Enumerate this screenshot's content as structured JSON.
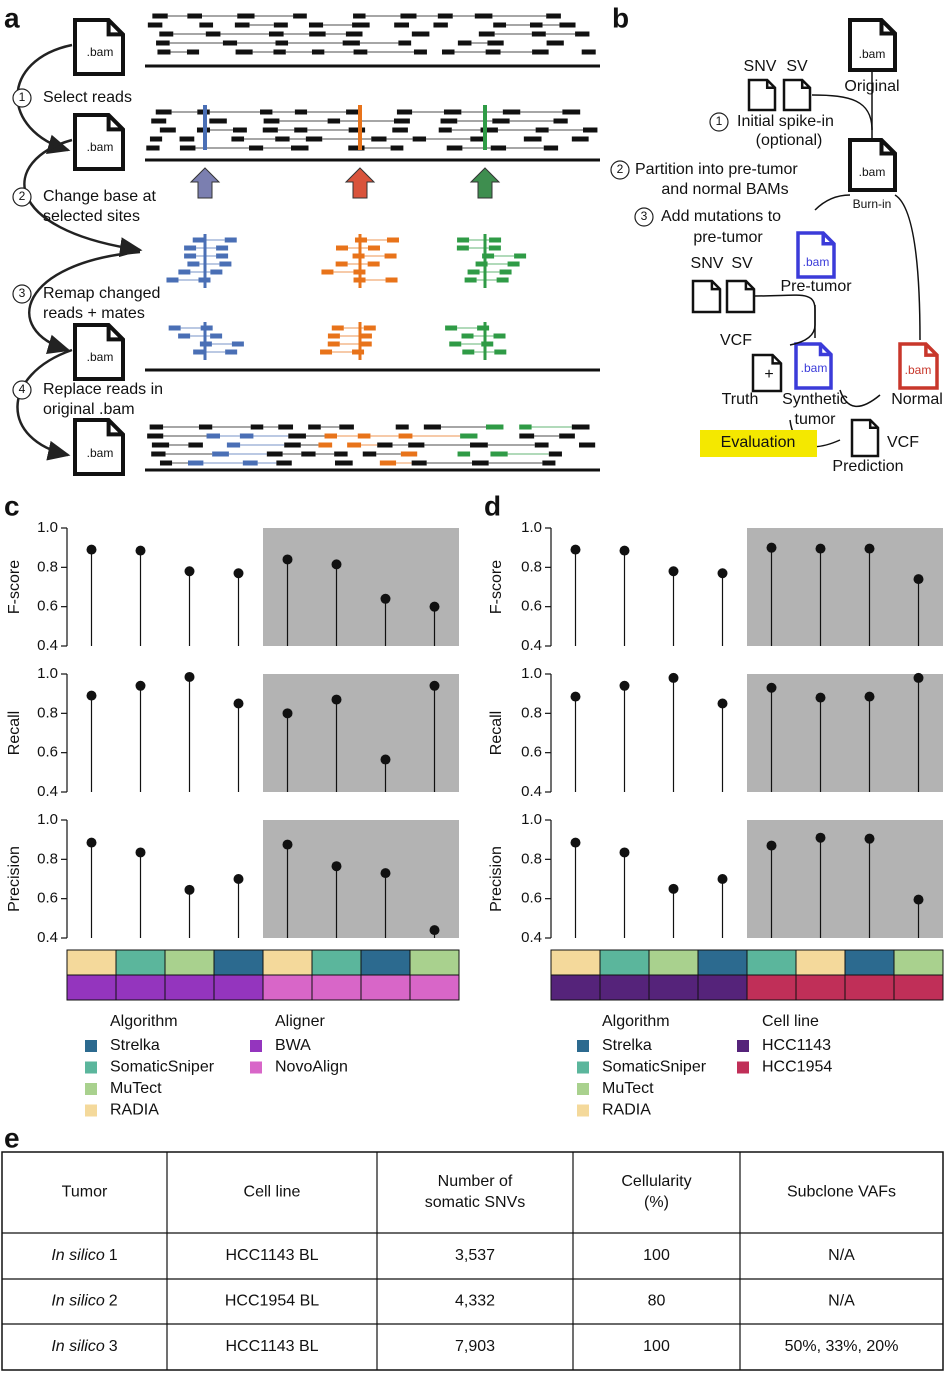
{
  "panel_labels": [
    "a",
    "b",
    "c",
    "d",
    "e"
  ],
  "panel_a": {
    "file_label": ".bam",
    "steps": [
      {
        "number": "1",
        "text": [
          "Select reads"
        ]
      },
      {
        "number": "2",
        "text": [
          "Change base at",
          "selected sites"
        ]
      },
      {
        "number": "3",
        "text": [
          "Remap changed",
          "reads + mates"
        ]
      },
      {
        "number": "4",
        "text": [
          "Replace reads in",
          "original .bam"
        ]
      }
    ]
  },
  "panel_b": {
    "bam": ".bam",
    "original": "Original",
    "snv": "SNV",
    "sv": "SV",
    "steps": [
      {
        "number": "1",
        "text": [
          "Initial spike-in",
          "(optional)"
        ]
      },
      {
        "number": "2",
        "text": [
          "Partition into pre-tumor",
          "and normal BAMs"
        ]
      },
      {
        "number": "3",
        "text": [
          "Add mutations to",
          "pre-tumor"
        ]
      }
    ],
    "burn_in": "Burn-in",
    "pre_tumor": "Pre-tumor",
    "vcf": "VCF",
    "plus": "+",
    "truth": "Truth",
    "synthetic_tumor": [
      "Synthetic",
      "tumor"
    ],
    "normal": "Normal",
    "evaluation": "Evaluation",
    "prediction": "Prediction"
  },
  "chart_data": [
    {
      "type": "stem",
      "subplots": [
        {
          "ylabel": "F-score",
          "values": [
            0.89,
            0.885,
            0.78,
            0.77,
            0.84,
            0.815,
            0.64,
            0.6
          ],
          "ylim": [
            0.4,
            1.0
          ],
          "yticks": [
            0.4,
            0.6,
            0.8,
            {
              "value": 1.0,
              "label": "1.0"
            }
          ]
        },
        {
          "ylabel": "Recall",
          "values": [
            0.89,
            0.94,
            0.985,
            0.85,
            0.8,
            0.87,
            0.565,
            0.94
          ],
          "ylim": [
            0.4,
            1.0
          ],
          "yticks": [
            0.4,
            0.6,
            0.8,
            {
              "value": 1.0,
              "label": "1.0"
            }
          ]
        },
        {
          "ylabel": "Precision",
          "values": [
            0.885,
            0.835,
            0.645,
            0.7,
            0.875,
            0.765,
            0.73,
            0.44
          ],
          "ylim": [
            0.4,
            1.0
          ],
          "yticks": [
            0.4,
            0.6,
            0.8,
            {
              "value": 1.0,
              "label": "1.0"
            }
          ]
        }
      ],
      "tracks": [
        {
          "title": "Algorithm",
          "legend": [
            {
              "name": "Strelka",
              "color": "#2c6a8f"
            },
            {
              "name": "SomaticSniper",
              "color": "#5bb69c"
            },
            {
              "name": "MuTect",
              "color": "#a9d18e"
            },
            {
              "name": "RADIA",
              "color": "#f4d99b"
            }
          ],
          "cells": [
            "RADIA",
            "SomaticSniper",
            "MuTect",
            "Strelka",
            "RADIA",
            "SomaticSniper",
            "Strelka",
            "MuTect"
          ]
        },
        {
          "title": "Aligner",
          "legend": [
            {
              "name": "BWA",
              "color": "#9435be"
            },
            {
              "name": "NovoAlign",
              "color": "#d866c8"
            }
          ],
          "cells": [
            "BWA",
            "BWA",
            "BWA",
            "BWA",
            "NovoAlign",
            "NovoAlign",
            "NovoAlign",
            "NovoAlign"
          ]
        }
      ]
    },
    {
      "type": "stem",
      "subplots": [
        {
          "ylabel": "F-score",
          "values": [
            0.89,
            0.885,
            0.78,
            0.77,
            0.9,
            0.895,
            0.895,
            0.74
          ],
          "ylim": [
            0.4,
            1.0
          ],
          "yticks": [
            0.4,
            0.6,
            0.8,
            {
              "value": 1.0,
              "label": "1.0"
            }
          ]
        },
        {
          "ylabel": "Recall",
          "values": [
            0.885,
            0.94,
            0.98,
            0.85,
            0.93,
            0.88,
            0.885,
            0.98
          ],
          "ylim": [
            0.4,
            1.0
          ],
          "yticks": [
            0.4,
            0.6,
            0.8,
            {
              "value": 1.0,
              "label": "1.0"
            }
          ]
        },
        {
          "ylabel": "Precision",
          "values": [
            0.885,
            0.835,
            0.65,
            0.7,
            0.87,
            0.91,
            0.905,
            0.595
          ],
          "ylim": [
            0.4,
            1.0
          ],
          "yticks": [
            0.4,
            0.6,
            0.8,
            {
              "value": 1.0,
              "label": "1.0"
            }
          ]
        }
      ],
      "tracks": [
        {
          "title": "Algorithm",
          "legend": [
            {
              "name": "Strelka",
              "color": "#2c6a8f"
            },
            {
              "name": "SomaticSniper",
              "color": "#5bb69c"
            },
            {
              "name": "MuTect",
              "color": "#a9d18e"
            },
            {
              "name": "RADIA",
              "color": "#f4d99b"
            }
          ],
          "cells": [
            "RADIA",
            "SomaticSniper",
            "MuTect",
            "Strelka",
            "SomaticSniper",
            "RADIA",
            "Strelka",
            "MuTect"
          ]
        },
        {
          "title": "Cell line",
          "legend": [
            {
              "name": "HCC1143",
              "color": "#55237a"
            },
            {
              "name": "HCC1954",
              "color": "#c02f58"
            }
          ],
          "cells": [
            "HCC1143",
            "HCC1143",
            "HCC1143",
            "HCC1143",
            "HCC1954",
            "HCC1954",
            "HCC1954",
            "HCC1954"
          ]
        }
      ]
    }
  ],
  "table": {
    "headers": [
      [
        "Tumor"
      ],
      [
        "Cell line"
      ],
      [
        "Number of",
        "somatic SNVs"
      ],
      [
        "Cellularity",
        "(%)"
      ],
      [
        "Subclone VAFs"
      ]
    ],
    "rows": [
      [
        [
          "In silico",
          "1"
        ],
        "HCC1143 BL",
        "3,537",
        "100",
        "N/A"
      ],
      [
        [
          "In silico",
          "2"
        ],
        "HCC1954 BL",
        "4,332",
        "80",
        "N/A"
      ],
      [
        [
          "In silico",
          "3"
        ],
        "HCC1143 BL",
        "7,903",
        "100",
        "50%, 33%, 20%"
      ]
    ]
  }
}
